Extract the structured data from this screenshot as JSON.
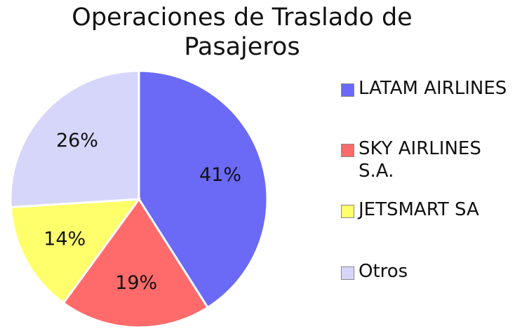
{
  "chart_data": {
    "type": "pie",
    "title": "Operaciones de Traslado de Pasajeros",
    "categories": [
      "LATAM AIRLINES",
      "SKY AIRLINES S.A.",
      "JETSMART SA",
      "Otros"
    ],
    "values": [
      41,
      19,
      14,
      26
    ],
    "value_labels": [
      "41%",
      "19%",
      "14%",
      "26%"
    ],
    "colors": [
      "#6a6af6",
      "#ff6b6b",
      "#ffff6b",
      "#d6d6fa"
    ]
  }
}
